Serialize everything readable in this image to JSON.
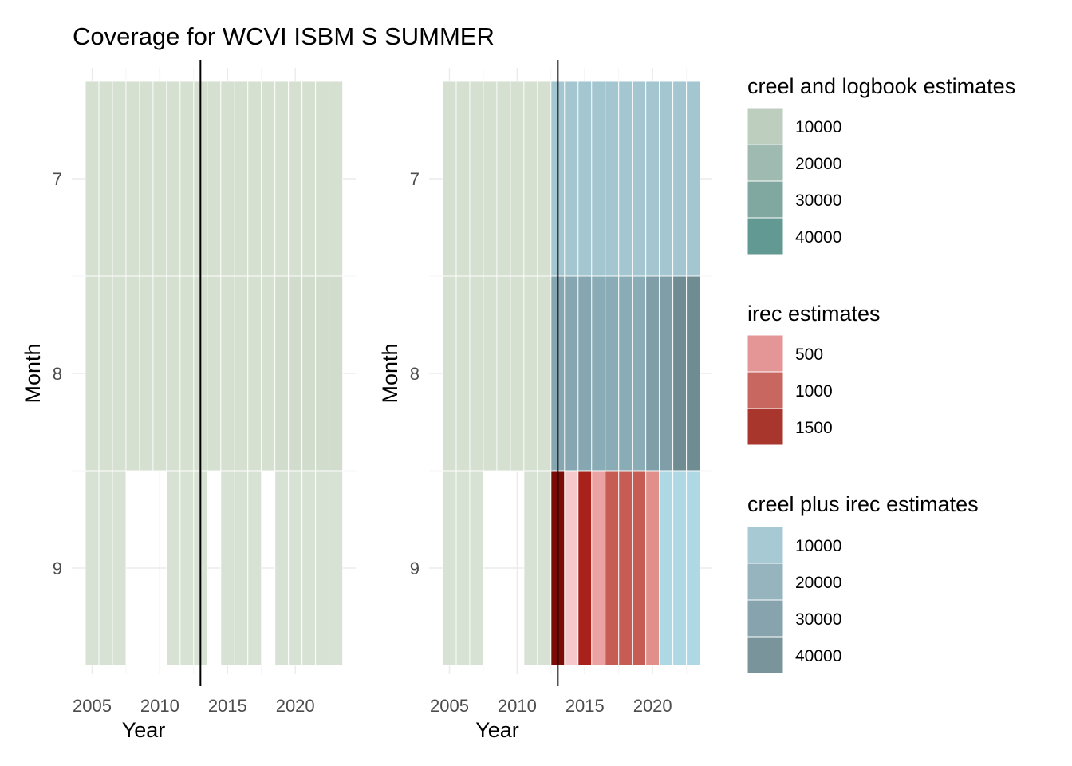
{
  "chart_data": {
    "type": "heatmap",
    "title": "Coverage for WCVI ISBM S SUMMER",
    "years": [
      2005,
      2006,
      2007,
      2008,
      2009,
      2010,
      2011,
      2012,
      2013,
      2014,
      2015,
      2016,
      2017,
      2018,
      2019,
      2020,
      2021,
      2022,
      2023
    ],
    "months": [
      7,
      8,
      9
    ],
    "x_ticks": [
      "2005",
      "2010",
      "2015",
      "2020"
    ],
    "y_ticks": [
      "7",
      "8",
      "9"
    ],
    "xlabel": "Year",
    "ylabel": "Month",
    "reference_year": 2013,
    "panels": [
      {
        "cells": [
          {
            "month": 7,
            "years": [
              2005,
              2006,
              2007,
              2008,
              2009,
              2010,
              2011,
              2012,
              2013,
              2014,
              2015,
              2016,
              2017,
              2018,
              2019,
              2020,
              2021,
              2022,
              2023
            ],
            "color": "#d6e0d1"
          },
          {
            "month": 8,
            "years": [
              2005,
              2006,
              2007,
              2008,
              2009,
              2010,
              2011,
              2012,
              2013,
              2014,
              2015,
              2016,
              2017,
              2018
            ],
            "color": "#d6e0d1"
          },
          {
            "month": 8,
            "years": [
              2019,
              2020,
              2021,
              2022,
              2023
            ],
            "color": "#d1dccc"
          },
          {
            "month": 9,
            "years": [
              2005,
              2006,
              2007,
              2011,
              2012,
              2013,
              2015,
              2016,
              2017,
              2019,
              2020,
              2021,
              2022,
              2023
            ],
            "color": "#d8e2d4"
          }
        ]
      },
      {
        "cells": [
          {
            "month": 7,
            "years": [
              2005,
              2006,
              2007,
              2008,
              2009,
              2010,
              2011,
              2012
            ],
            "color": "#d6e0d1"
          },
          {
            "month": 7,
            "years": [
              2013,
              2014,
              2015,
              2016,
              2017,
              2018,
              2019,
              2020,
              2021,
              2022,
              2023
            ],
            "color": "#a3c6d1"
          },
          {
            "month": 8,
            "years": [
              2005,
              2006,
              2007,
              2008,
              2009,
              2010,
              2011,
              2012
            ],
            "color": "#d6e0d1"
          },
          {
            "month": 8,
            "years": [
              2013,
              2014,
              2015
            ],
            "color": "#86a7b2"
          },
          {
            "month": 8,
            "years": [
              2016,
              2017,
              2018,
              2019
            ],
            "color": "#8aacb6"
          },
          {
            "month": 8,
            "years": [
              2020,
              2021
            ],
            "color": "#7f9ea8"
          },
          {
            "month": 8,
            "years": [
              2022,
              2023
            ],
            "color": "#6f8c93"
          },
          {
            "month": 9,
            "years": [
              2005,
              2006,
              2007,
              2011,
              2012
            ],
            "color": "#d8e2d4"
          },
          {
            "month": 9,
            "years": [
              2013
            ],
            "color": "#7a0b06"
          },
          {
            "month": 9,
            "years": [
              2014
            ],
            "color": "#f5c9cc"
          },
          {
            "month": 9,
            "years": [
              2015
            ],
            "color": "#a8221b"
          },
          {
            "month": 9,
            "years": [
              2016
            ],
            "color": "#eba2a2"
          },
          {
            "month": 9,
            "years": [
              2017,
              2018,
              2019
            ],
            "color": "#c65c53"
          },
          {
            "month": 9,
            "years": [
              2020
            ],
            "color": "#e18f8b"
          },
          {
            "month": 9,
            "years": [
              2021,
              2022,
              2023
            ],
            "color": "#add8e4"
          }
        ]
      }
    ],
    "legends": [
      {
        "title": "creel and logbook estimates",
        "items": [
          {
            "label": "10000",
            "color": "#bdcebf"
          },
          {
            "label": "20000",
            "color": "#9fbbb1"
          },
          {
            "label": "30000",
            "color": "#80a8a0"
          },
          {
            "label": "40000",
            "color": "#629993"
          }
        ]
      },
      {
        "title": "irec estimates",
        "items": [
          {
            "label": "500",
            "color": "#e49697"
          },
          {
            "label": "1000",
            "color": "#c8675f"
          },
          {
            "label": "1500",
            "color": "#a9362c"
          }
        ]
      },
      {
        "title": "creel plus irec estimates",
        "items": [
          {
            "label": "10000",
            "color": "#a7c9d4"
          },
          {
            "label": "20000",
            "color": "#96b4be"
          },
          {
            "label": "30000",
            "color": "#87a4ae"
          },
          {
            "label": "40000",
            "color": "#7a949c"
          }
        ]
      }
    ]
  }
}
